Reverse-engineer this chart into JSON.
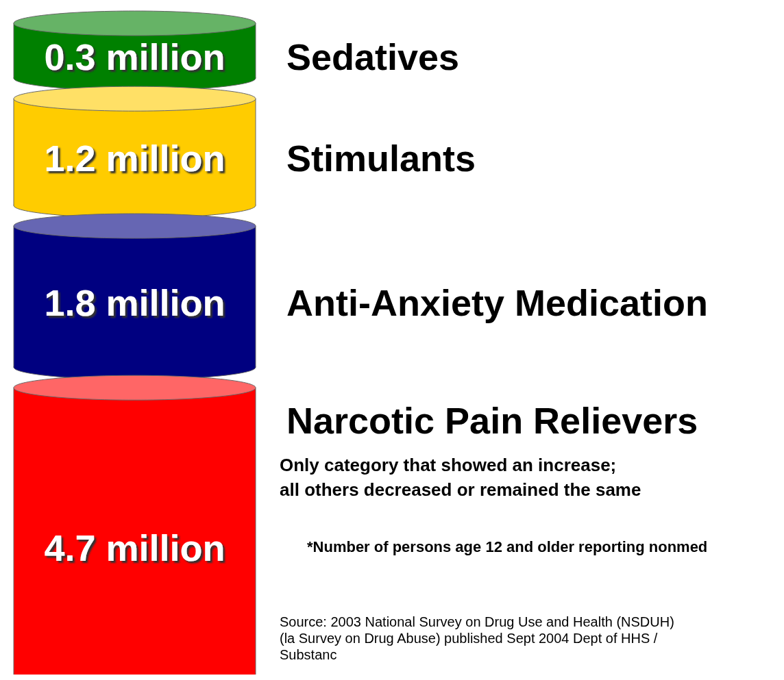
{
  "chart_data": {
    "type": "other",
    "categories": [
      "Sedatives",
      "Stimulants",
      "Anti-Anxiety Medication",
      "Narcotic Pain Relievers"
    ],
    "values": [
      0.3,
      1.2,
      1.8,
      4.7
    ],
    "value_labels": [
      "0.3 million",
      "1.2 million",
      "1.8 million",
      "4.7 million"
    ],
    "colors": [
      "#008000",
      "#ffcc00",
      "#000080",
      "#ff0000"
    ],
    "annotations": [
      "Only category that showed an increase;\nall others decreased or remained the same",
      "*Number of persons age 12 and older reporting nonmed",
      "Source: 2003 National Survey on Drug Use and Health (NSDUH) (la Survey on Drug Abuse) published Sept 2004 Dept of HHS / Substanc"
    ]
  }
}
